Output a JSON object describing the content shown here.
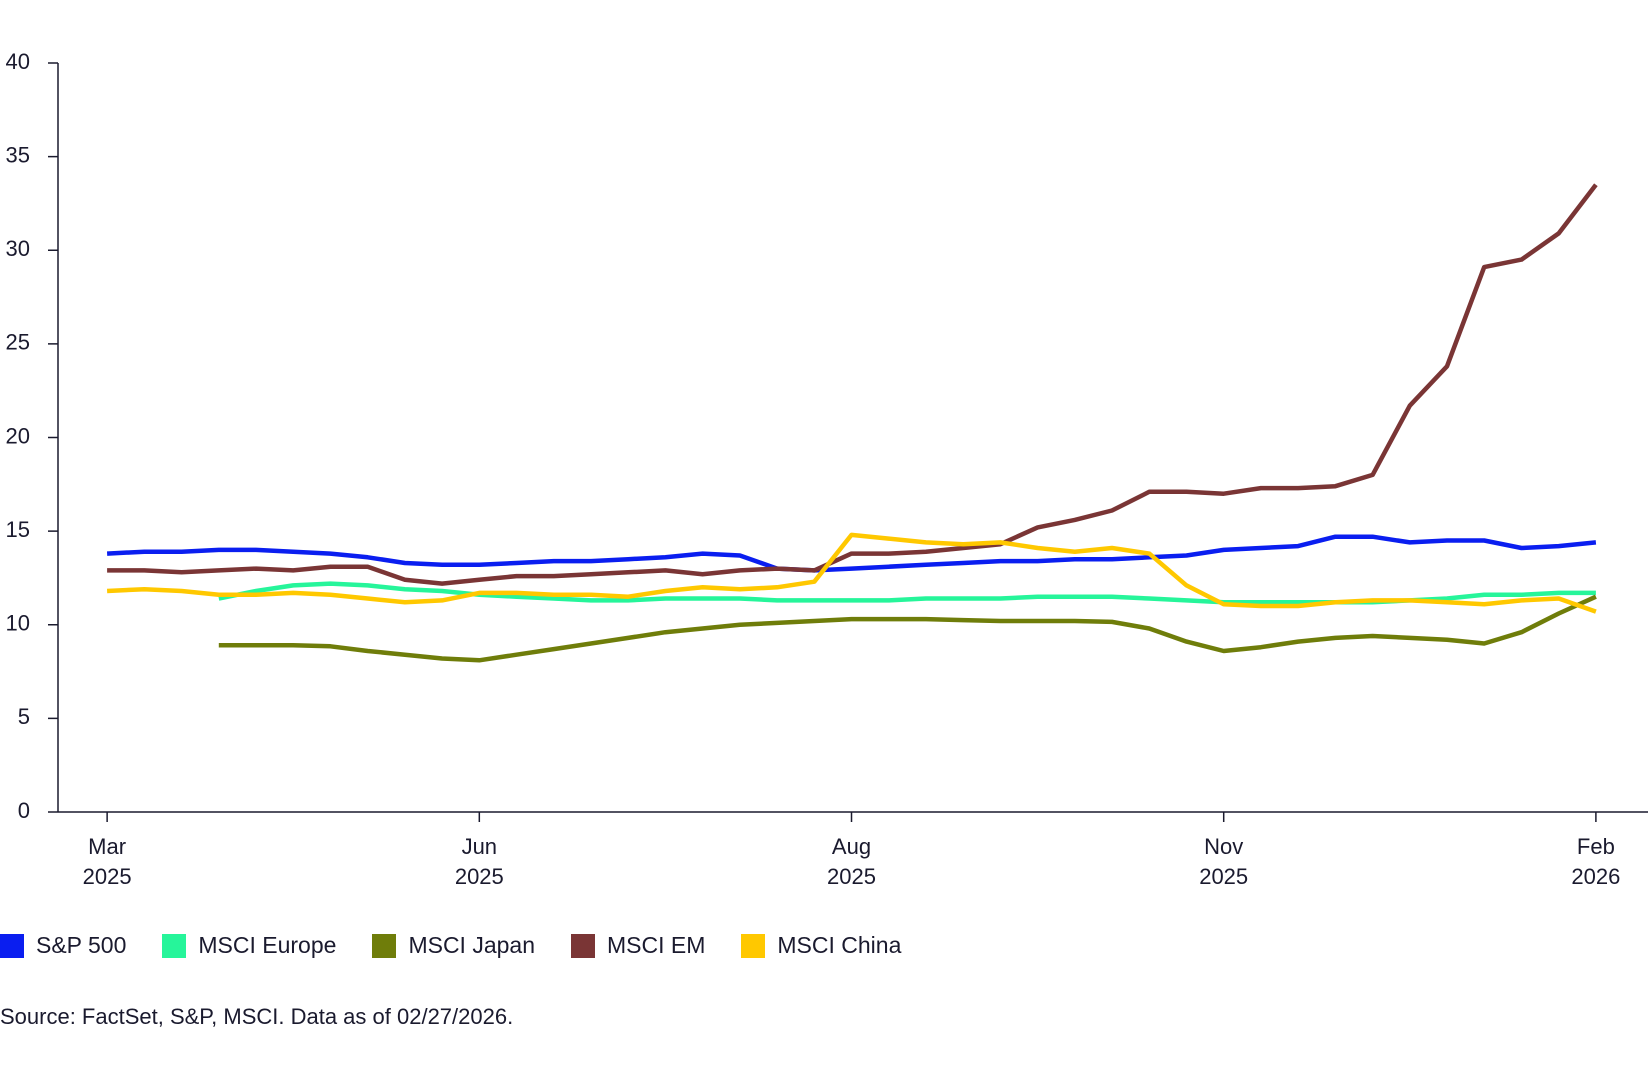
{
  "chart_data": {
    "type": "line",
    "x": [
      0,
      2.5,
      5,
      7.5,
      10,
      12.5,
      15,
      17.5,
      20,
      22.5,
      25,
      27.5,
      30,
      32.5,
      35,
      37.5,
      40,
      42.5,
      45,
      47.5,
      50,
      52.5,
      55,
      57.5,
      60,
      62.5,
      65,
      67.5,
      70,
      72.5,
      75,
      77.5,
      80,
      82.5,
      85,
      87.5,
      90,
      92.5,
      95,
      97.5,
      100
    ],
    "xlim": [
      -3.3,
      103.5
    ],
    "xticks": [
      {
        "value": 0,
        "label": "Mar 2025"
      },
      {
        "value": 25,
        "label": "Jun 2025"
      },
      {
        "value": 50,
        "label": "Aug 2025"
      },
      {
        "value": 75,
        "label": "Nov 2025"
      },
      {
        "value": 100,
        "label": "Feb 2026"
      }
    ],
    "ylim": [
      0,
      40
    ],
    "yticks": [
      0,
      5,
      10,
      15,
      20,
      25,
      30,
      35,
      40
    ],
    "series": [
      {
        "name": "S&P 500",
        "color": "#0a1ef0",
        "values": [
          13.8,
          13.9,
          13.9,
          14.0,
          14.0,
          13.9,
          13.8,
          13.6,
          13.3,
          13.2,
          13.2,
          13.3,
          13.4,
          13.4,
          13.5,
          13.6,
          13.8,
          13.7,
          13.0,
          12.9,
          13.0,
          13.1,
          13.2,
          13.3,
          13.4,
          13.4,
          13.5,
          13.5,
          13.6,
          13.7,
          14.0,
          14.1,
          14.2,
          14.7,
          14.7,
          14.4,
          14.5,
          14.5,
          14.1,
          14.2,
          14.4
        ]
      },
      {
        "name": "MSCI Europe",
        "color": "#26f59a",
        "values": [
          null,
          null,
          null,
          11.4,
          11.8,
          12.1,
          12.2,
          12.1,
          11.9,
          11.8,
          11.6,
          11.5,
          11.4,
          11.3,
          11.3,
          11.4,
          11.4,
          11.4,
          11.3,
          11.3,
          11.3,
          11.3,
          11.4,
          11.4,
          11.4,
          11.5,
          11.5,
          11.5,
          11.4,
          11.3,
          11.2,
          11.2,
          11.2,
          11.2,
          11.2,
          11.3,
          11.4,
          11.6,
          11.6,
          11.7,
          11.7
        ]
      },
      {
        "name": "MSCI Japan",
        "color": "#6f7d0a",
        "values": [
          null,
          null,
          null,
          8.9,
          8.9,
          8.9,
          8.85,
          8.6,
          8.4,
          8.2,
          8.1,
          8.4,
          8.7,
          9.0,
          9.3,
          9.6,
          9.8,
          10.0,
          10.1,
          10.2,
          10.3,
          10.3,
          10.3,
          10.25,
          10.2,
          10.2,
          10.2,
          10.15,
          9.8,
          9.1,
          8.6,
          8.8,
          9.1,
          9.3,
          9.4,
          9.3,
          9.2,
          9.0,
          9.6,
          10.6,
          11.5
        ]
      },
      {
        "name": "MSCI EM",
        "color": "#7a3535",
        "values": [
          12.9,
          12.9,
          12.8,
          12.9,
          13.0,
          12.9,
          13.1,
          13.1,
          12.4,
          12.2,
          12.4,
          12.6,
          12.6,
          12.7,
          12.8,
          12.9,
          12.7,
          12.9,
          13.0,
          12.9,
          13.8,
          13.8,
          13.9,
          14.1,
          14.3,
          15.2,
          15.6,
          16.1,
          17.1,
          17.1,
          17.0,
          17.3,
          17.3,
          17.4,
          18.0,
          21.7,
          23.8,
          29.1,
          29.5,
          30.9,
          33.5
        ]
      },
      {
        "name": "MSCI China",
        "color": "#ffc800",
        "values": [
          11.8,
          11.9,
          11.8,
          11.6,
          11.6,
          11.7,
          11.6,
          11.4,
          11.2,
          11.3,
          11.7,
          11.7,
          11.6,
          11.6,
          11.5,
          11.8,
          12.0,
          11.9,
          12.0,
          12.3,
          14.8,
          14.6,
          14.4,
          14.3,
          14.4,
          14.1,
          13.9,
          14.1,
          13.8,
          12.1,
          11.1,
          11.0,
          11.0,
          11.2,
          11.3,
          11.3,
          11.2,
          11.1,
          11.3,
          11.4,
          10.7
        ]
      }
    ],
    "legend": "bottom-left",
    "source": "Source: FactSet, S&P, MSCI. Data as of 02/27/2026."
  }
}
